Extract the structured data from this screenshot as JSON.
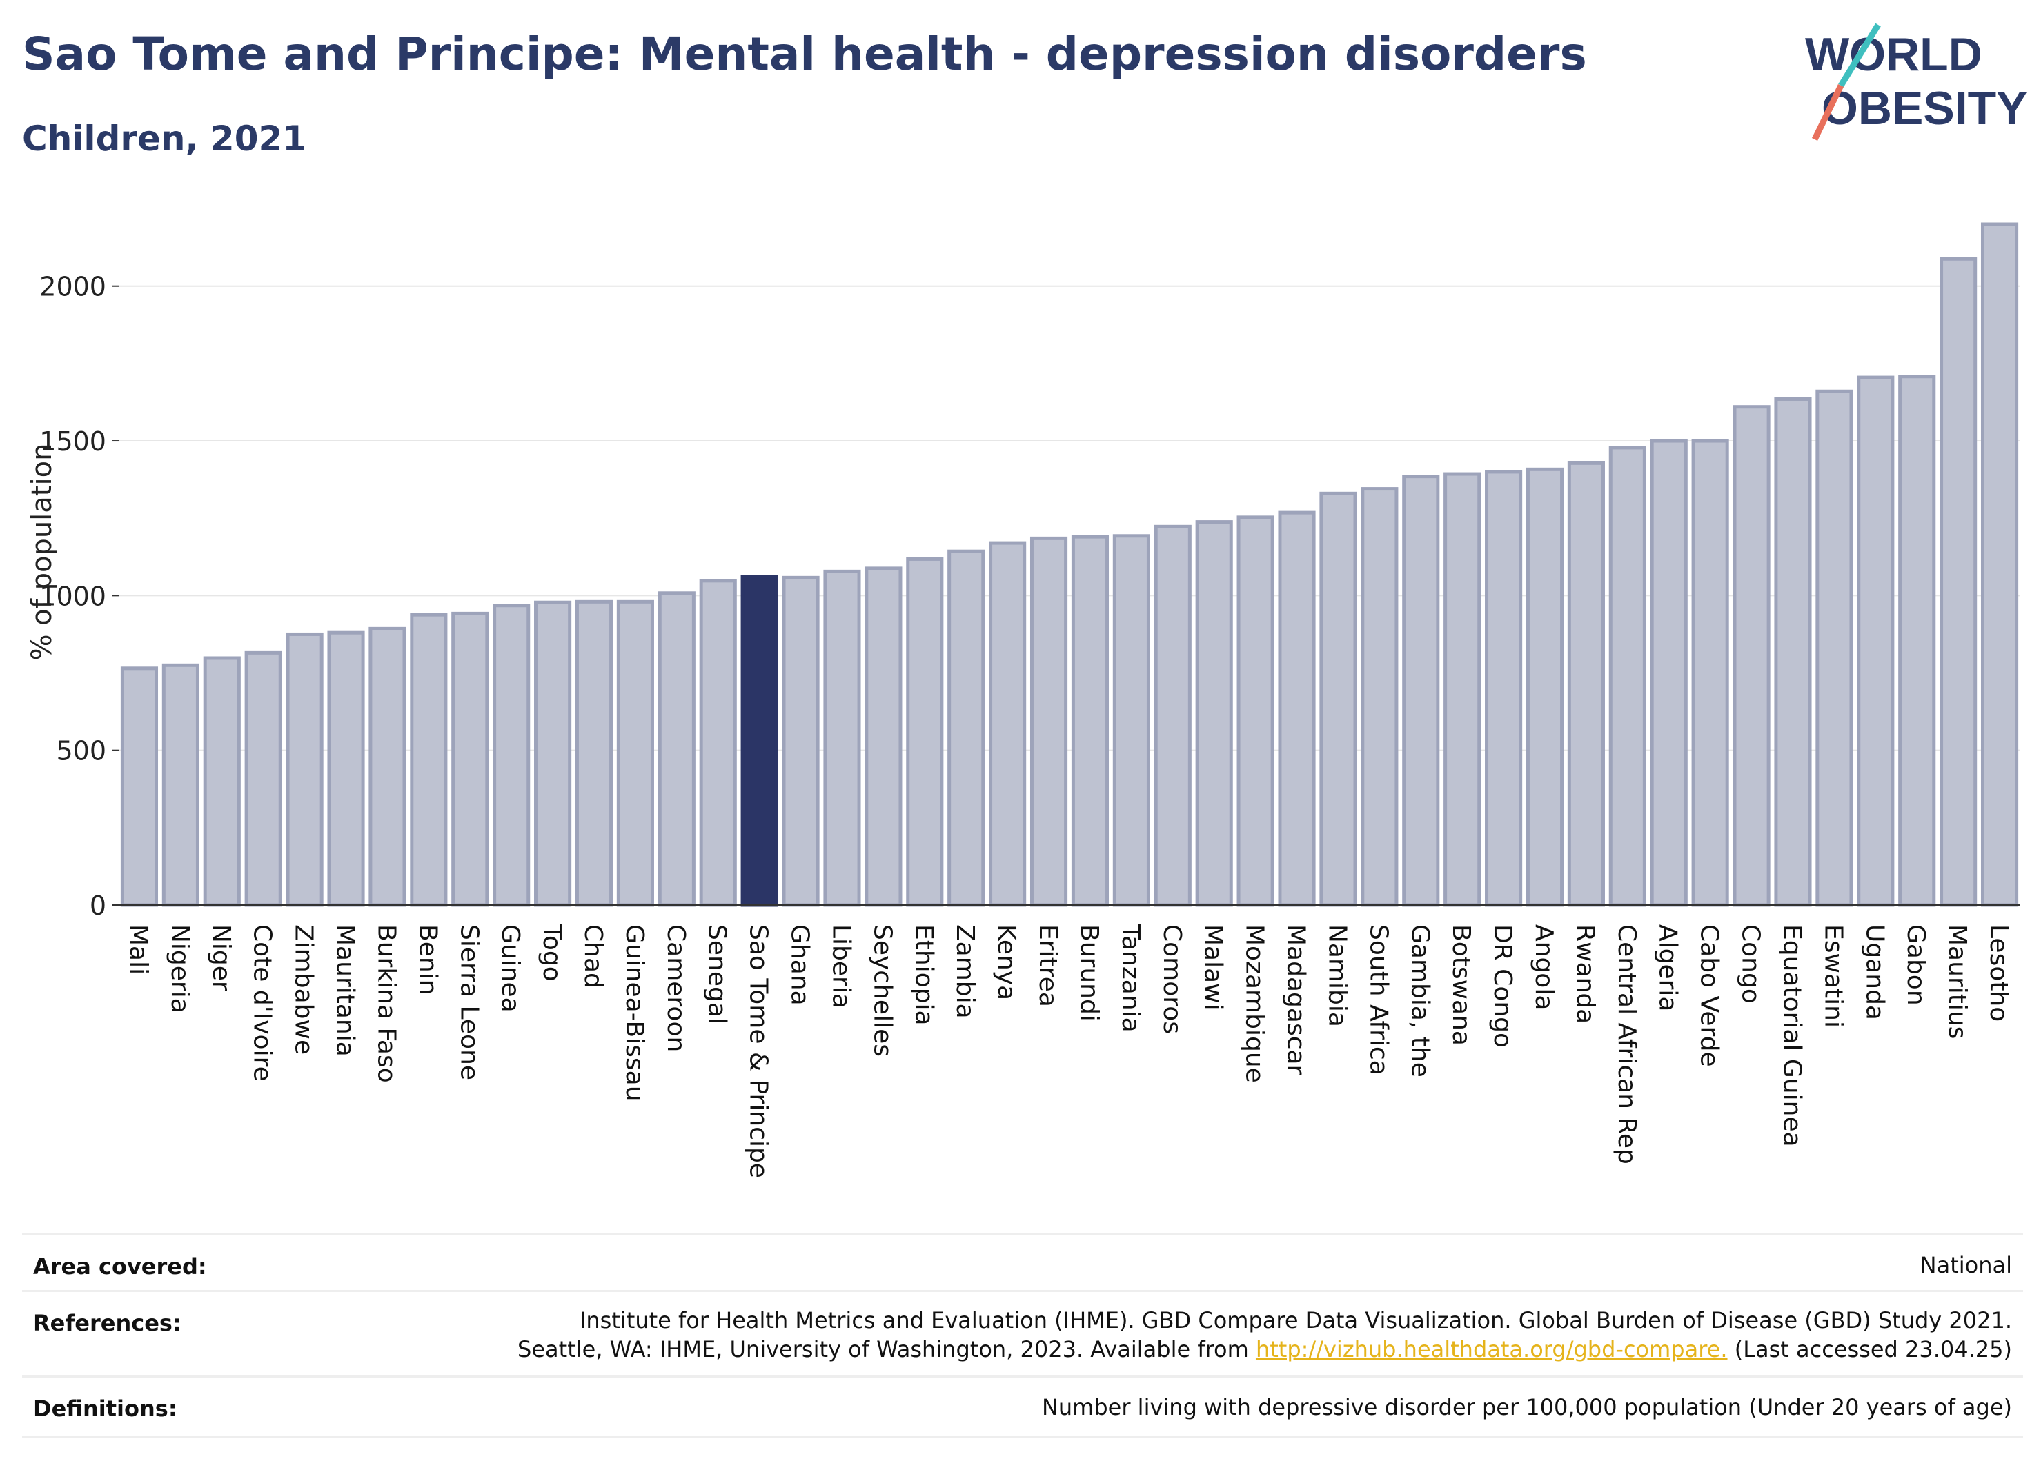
{
  "header": {
    "title": "Sao Tome and Principe: Mental health - depression disorders",
    "subtitle": "Children, 2021"
  },
  "logo": {
    "line1": "WORLD",
    "line2": "OBESITY"
  },
  "colors": {
    "highlight": "#2b3566",
    "bar_fill": "#bec2d1",
    "bar_stroke": "#9da3ba",
    "title": "#2b3a67",
    "link": "#e5b31b"
  },
  "chart_data": {
    "type": "bar",
    "ylabel": "% of population",
    "xlabel": "",
    "ylim": [
      0,
      2200
    ],
    "yticks": [
      0,
      500,
      1000,
      1500,
      2000
    ],
    "grid": true,
    "highlight": "Sao Tome & Principe",
    "categories": [
      "Mali",
      "Nigeria",
      "Niger",
      "Cote d'Ivoire",
      "Zimbabwe",
      "Mauritania",
      "Burkina Faso",
      "Benin",
      "Sierra Leone",
      "Guinea",
      "Togo",
      "Chad",
      "Guinea-Bissau",
      "Cameroon",
      "Senegal",
      "Sao Tome & Principe",
      "Ghana",
      "Liberia",
      "Seychelles",
      "Ethiopia",
      "Zambia",
      "Kenya",
      "Eritrea",
      "Burundi",
      "Tanzania",
      "Comoros",
      "Malawi",
      "Mozambique",
      "Madagascar",
      "Namibia",
      "South Africa",
      "Gambia, the",
      "Botswana",
      "DR Congo",
      "Angola",
      "Rwanda",
      "Central African Rep",
      "Algeria",
      "Cabo Verde",
      "Congo",
      "Equatorial Guinea",
      "Eswatini",
      "Uganda",
      "Gabon",
      "Mauritius",
      "Lesotho"
    ],
    "values": [
      765,
      775,
      798,
      815,
      875,
      880,
      893,
      938,
      942,
      968,
      978,
      980,
      980,
      1008,
      1048,
      1060,
      1058,
      1078,
      1088,
      1118,
      1143,
      1170,
      1185,
      1190,
      1193,
      1223,
      1238,
      1253,
      1268,
      1330,
      1345,
      1385,
      1393,
      1400,
      1408,
      1428,
      1478,
      1500,
      1500,
      1610,
      1635,
      1660,
      1705,
      1708,
      2088,
      2200
    ]
  },
  "footer": {
    "area_label": "Area covered:",
    "area_value": "National",
    "references_label": "References:",
    "references_line1": "Institute for Health Metrics and Evaluation (IHME). GBD Compare Data Visualization. Global Burden of Disease (GBD) Study 2021.",
    "references_line2_prefix": "Seattle, WA: IHME, University of Washington, 2023. Available from ",
    "references_link": "http://vizhub.healthdata.org/gbd-compare.",
    "references_line2_suffix": " (Last accessed 23.04.25)",
    "definitions_label": "Definitions:",
    "definitions_value": "Number living with depressive disorder per 100,000 population (Under 20 years of age)"
  }
}
